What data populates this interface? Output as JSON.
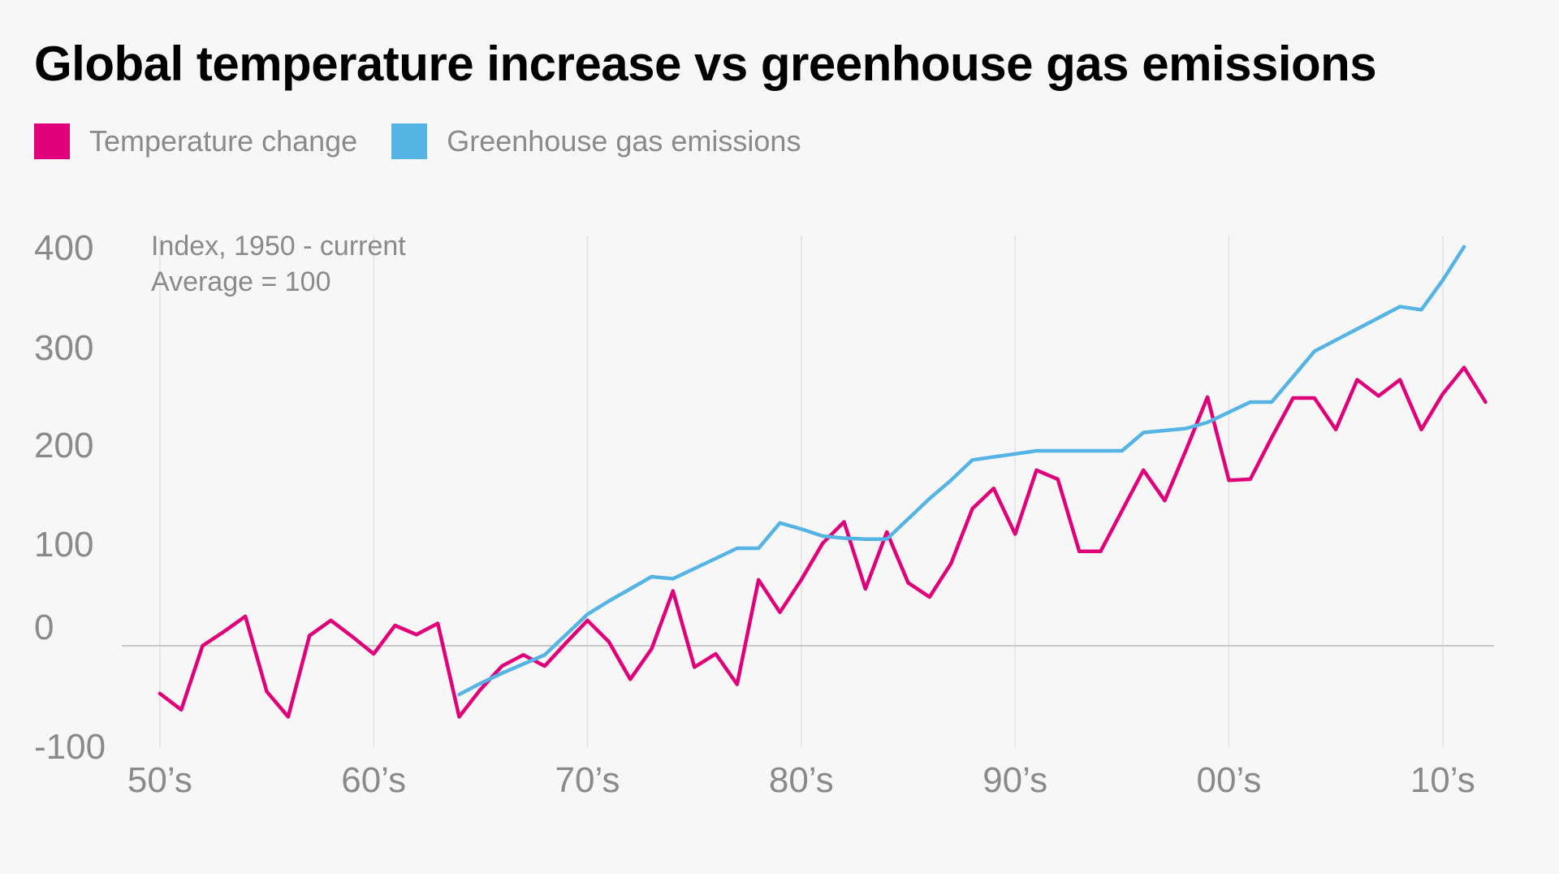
{
  "chart_data": {
    "type": "line",
    "title": "Global temperature increase vs greenhouse gas emissions",
    "annotation_lines": [
      "Index, 1950 - current",
      "Average = 100"
    ],
    "ylim": [
      -100,
      400
    ],
    "y_ticks": [
      -100,
      0,
      100,
      200,
      300,
      400
    ],
    "y_tick_labels": [
      "-100",
      "0",
      "100",
      "200",
      "300",
      "400"
    ],
    "x_ticks": [
      1950,
      1960,
      1970,
      1980,
      1990,
      2000,
      2010
    ],
    "x_tick_labels": [
      "50’s",
      "60’s",
      "70’s",
      "80’s",
      "90’s",
      "00’s",
      "10’s"
    ],
    "xlim": [
      1948.6,
      2012.4
    ],
    "grid": "vertical",
    "legend_position": "top-left",
    "series": [
      {
        "name": "Temperature change",
        "color": "#e0007a",
        "x": [
          1950,
          1951,
          1952,
          1953,
          1954,
          1955,
          1956,
          1957,
          1958,
          1959,
          1960,
          1961,
          1962,
          1963,
          1964,
          1965,
          1966,
          1967,
          1968,
          1969,
          1970,
          1971,
          1972,
          1973,
          1974,
          1975,
          1976,
          1977,
          1978,
          1979,
          1980,
          1981,
          1982,
          1983,
          1984,
          1985,
          1986,
          1987,
          1988,
          1989,
          1990,
          1991,
          1992,
          1993,
          1994,
          1995,
          1996,
          1997,
          1998,
          1999,
          2000,
          2001,
          2002,
          2003,
          2004,
          2005,
          2006,
          2007,
          2008,
          2009,
          2010,
          2011,
          2012
        ],
        "values": [
          -47,
          -63,
          0,
          14,
          29,
          -45,
          -70,
          10,
          25,
          9,
          -8,
          20,
          11,
          22,
          -70,
          -43,
          -20,
          -9,
          -20,
          3,
          25,
          4,
          -33,
          -3,
          54,
          -21,
          -8,
          -38,
          65,
          33,
          65,
          101,
          122,
          56,
          112,
          62,
          48,
          81,
          135,
          155,
          110,
          173,
          164,
          93,
          93,
          133,
          173,
          143,
          193,
          245,
          163,
          164,
          205,
          244,
          244,
          213,
          262,
          246,
          262,
          213,
          248,
          274,
          240
        ]
      },
      {
        "name": "Greenhouse gas emissions",
        "color": "#55b4e3",
        "x": [
          1964,
          1965,
          1966,
          1967,
          1968,
          1969,
          1970,
          1971,
          1972,
          1973,
          1974,
          1975,
          1976,
          1977,
          1978,
          1979,
          1980,
          1981,
          1982,
          1983,
          1984,
          1985,
          1986,
          1987,
          1988,
          1989,
          1990,
          1991,
          1992,
          1993,
          1994,
          1995,
          1996,
          1997,
          1998,
          1999,
          2000,
          2001,
          2002,
          2003,
          2004,
          2005,
          2006,
          2007,
          2008,
          2009,
          2010,
          2011
        ],
        "values": [
          -48,
          -37,
          -27,
          -18,
          -9,
          11,
          31,
          44,
          56,
          68,
          66,
          76,
          86,
          96,
          96,
          121,
          115,
          108,
          106,
          105,
          105,
          125,
          145,
          163,
          183,
          186,
          189,
          192,
          192,
          192,
          192,
          192,
          210,
          212,
          214,
          220,
          230,
          240,
          240,
          265,
          290,
          301,
          312,
          323,
          334,
          331,
          360,
          393
        ]
      }
    ]
  }
}
